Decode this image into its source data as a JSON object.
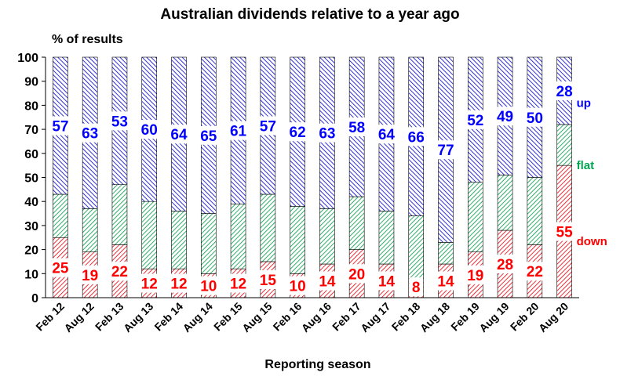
{
  "chart_data": {
    "type": "bar",
    "stacked": true,
    "title": "Australian dividends relative to a year ago",
    "ylabel": "% of results",
    "xlabel": "Reporting season",
    "ylim": [
      0,
      100
    ],
    "yticks": [
      0,
      10,
      20,
      30,
      40,
      50,
      60,
      70,
      80,
      90,
      100
    ],
    "categories": [
      "Feb 12",
      "Aug 12",
      "Feb 13",
      "Aug 13",
      "Feb 14",
      "Aug 14",
      "Feb 15",
      "Aug 15",
      "Feb 16",
      "Aug 16",
      "Feb 17",
      "Aug 17",
      "Feb 18",
      "Aug 18",
      "Feb 19",
      "Aug 19",
      "Feb 20",
      "Aug 20"
    ],
    "series": [
      {
        "name": "down",
        "color": "#e8000b",
        "label_color": "#ff0000",
        "pattern": "diagonal-right",
        "values": [
          25,
          19,
          22,
          12,
          12,
          10,
          12,
          15,
          10,
          14,
          20,
          14,
          8,
          14,
          19,
          28,
          22,
          55
        ]
      },
      {
        "name": "flat",
        "color": "#009a44",
        "label_color": "#00a651",
        "pattern": "diagonal-right",
        "values": [
          18,
          18,
          25,
          28,
          24,
          25,
          27,
          28,
          28,
          23,
          22,
          22,
          26,
          9,
          29,
          23,
          28,
          17
        ]
      },
      {
        "name": "up",
        "color": "#0000cc",
        "label_color": "#0000ff",
        "pattern": "diagonal-left",
        "values": [
          57,
          63,
          53,
          60,
          64,
          65,
          61,
          57,
          62,
          63,
          58,
          64,
          66,
          77,
          52,
          49,
          50,
          28
        ]
      }
    ],
    "labeled_series": [
      "down",
      "up"
    ],
    "legend": {
      "placement": "right",
      "entries": [
        "up",
        "flat",
        "down"
      ]
    },
    "grid": false
  }
}
